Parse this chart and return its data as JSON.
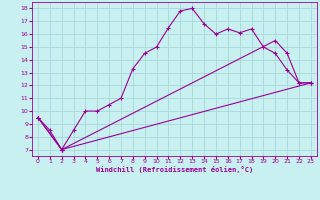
{
  "xlabel": "Windchill (Refroidissement éolien,°C)",
  "xlim": [
    -0.5,
    23.5
  ],
  "ylim": [
    6.5,
    18.5
  ],
  "xticks": [
    0,
    1,
    2,
    3,
    4,
    5,
    6,
    7,
    8,
    9,
    10,
    11,
    12,
    13,
    14,
    15,
    16,
    17,
    18,
    19,
    20,
    21,
    22,
    23
  ],
  "yticks": [
    7,
    8,
    9,
    10,
    11,
    12,
    13,
    14,
    15,
    16,
    17,
    18
  ],
  "background_color": "#c8f0f0",
  "grid_color": "#a8d8d8",
  "line_color": "#990099",
  "curve1_x": [
    0,
    1,
    2,
    3,
    4,
    5,
    6,
    7,
    8,
    9,
    10,
    11,
    12,
    13,
    14,
    15,
    16,
    17,
    18,
    19,
    20,
    21,
    22,
    23
  ],
  "curve1_y": [
    9.5,
    8.5,
    7.0,
    8.5,
    10.0,
    10.0,
    10.5,
    11.0,
    13.3,
    14.5,
    15.0,
    16.5,
    17.8,
    18.0,
    16.8,
    16.0,
    16.4,
    16.1,
    16.4,
    15.0,
    14.5,
    13.2,
    12.2,
    12.2
  ],
  "curve2_x": [
    0,
    2,
    23
  ],
  "curve2_y": [
    9.5,
    7.0,
    12.2
  ],
  "curve3_x": [
    0,
    2,
    20,
    21,
    22,
    23
  ],
  "curve3_y": [
    9.5,
    7.0,
    15.5,
    14.5,
    12.2,
    12.2
  ]
}
